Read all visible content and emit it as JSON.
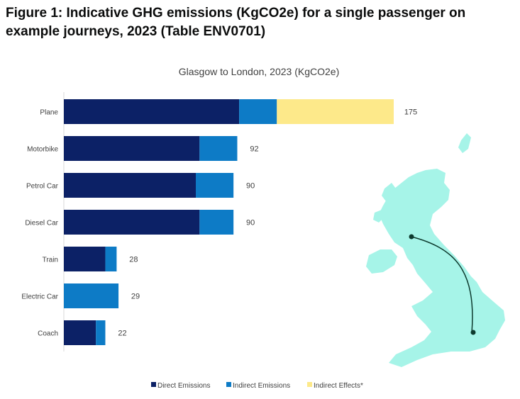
{
  "figure_title": "Figure 1: Indicative GHG emissions (KgCO2e) for a single passenger on example journeys, 2023 (Table ENV0701)",
  "colors": {
    "direct": "#0c2166",
    "indirect": "#0d7bc6",
    "effects": "#fde98a",
    "map_fill": "#a6f4e8",
    "route": "#0d3a2e"
  },
  "chart_data": {
    "type": "bar",
    "orientation": "horizontal",
    "stacked": true,
    "title": "Glasgow to London, 2023 (KgCO2e)",
    "categories": [
      "Plane",
      "Motorbike",
      "Petrol Car",
      "Diesel Car",
      "Train",
      "Electric Car",
      "Coach"
    ],
    "series": [
      {
        "name": "Direct Emissions",
        "values": [
          93,
          72,
          70,
          72,
          22,
          0,
          17
        ]
      },
      {
        "name": "Indirect Emissions",
        "values": [
          20,
          20,
          20,
          18,
          6,
          29,
          5
        ]
      },
      {
        "name": "Indirect Effects*",
        "values": [
          62,
          0,
          0,
          0,
          0,
          0,
          0
        ]
      }
    ],
    "totals": [
      "175",
      "92",
      "90",
      "90",
      "28",
      "29",
      "22"
    ],
    "xlim": [
      0,
      175
    ],
    "grid": false,
    "legend_position": "bottom"
  }
}
